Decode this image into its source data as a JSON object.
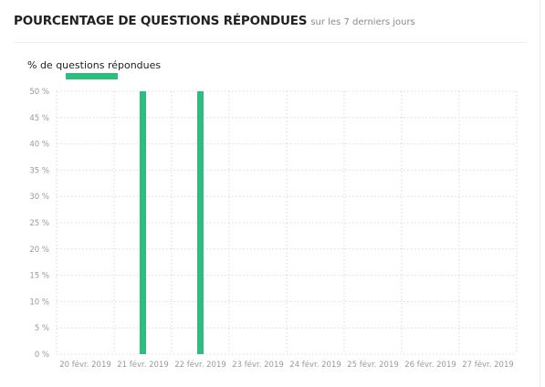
{
  "header": {
    "title": "POURCENTAGE DE QUESTIONS RÉPONDUES",
    "subtitle": "sur les 7 derniers jours"
  },
  "chart_data": {
    "type": "bar",
    "categories": [
      "20 févr. 2019",
      "21 févr. 2019",
      "22 févr. 2019",
      "23 févr. 2019",
      "24 févr. 2019",
      "25 févr. 2019",
      "26 févr. 2019",
      "27 févr. 2019"
    ],
    "series": [
      {
        "name": "% de questions répondues",
        "values": [
          0,
          50,
          50,
          0,
          0,
          0,
          0,
          0
        ],
        "color": "#2dbd7e"
      }
    ],
    "y_ticks": [
      "0 %",
      "5 %",
      "10 %",
      "15 %",
      "20 %",
      "25 %",
      "30 %",
      "35 %",
      "40 %",
      "45 %",
      "50 %"
    ],
    "ylim": [
      0,
      50
    ],
    "grid": true,
    "legend": "top-left",
    "grid_color": "#d9d9d9"
  }
}
